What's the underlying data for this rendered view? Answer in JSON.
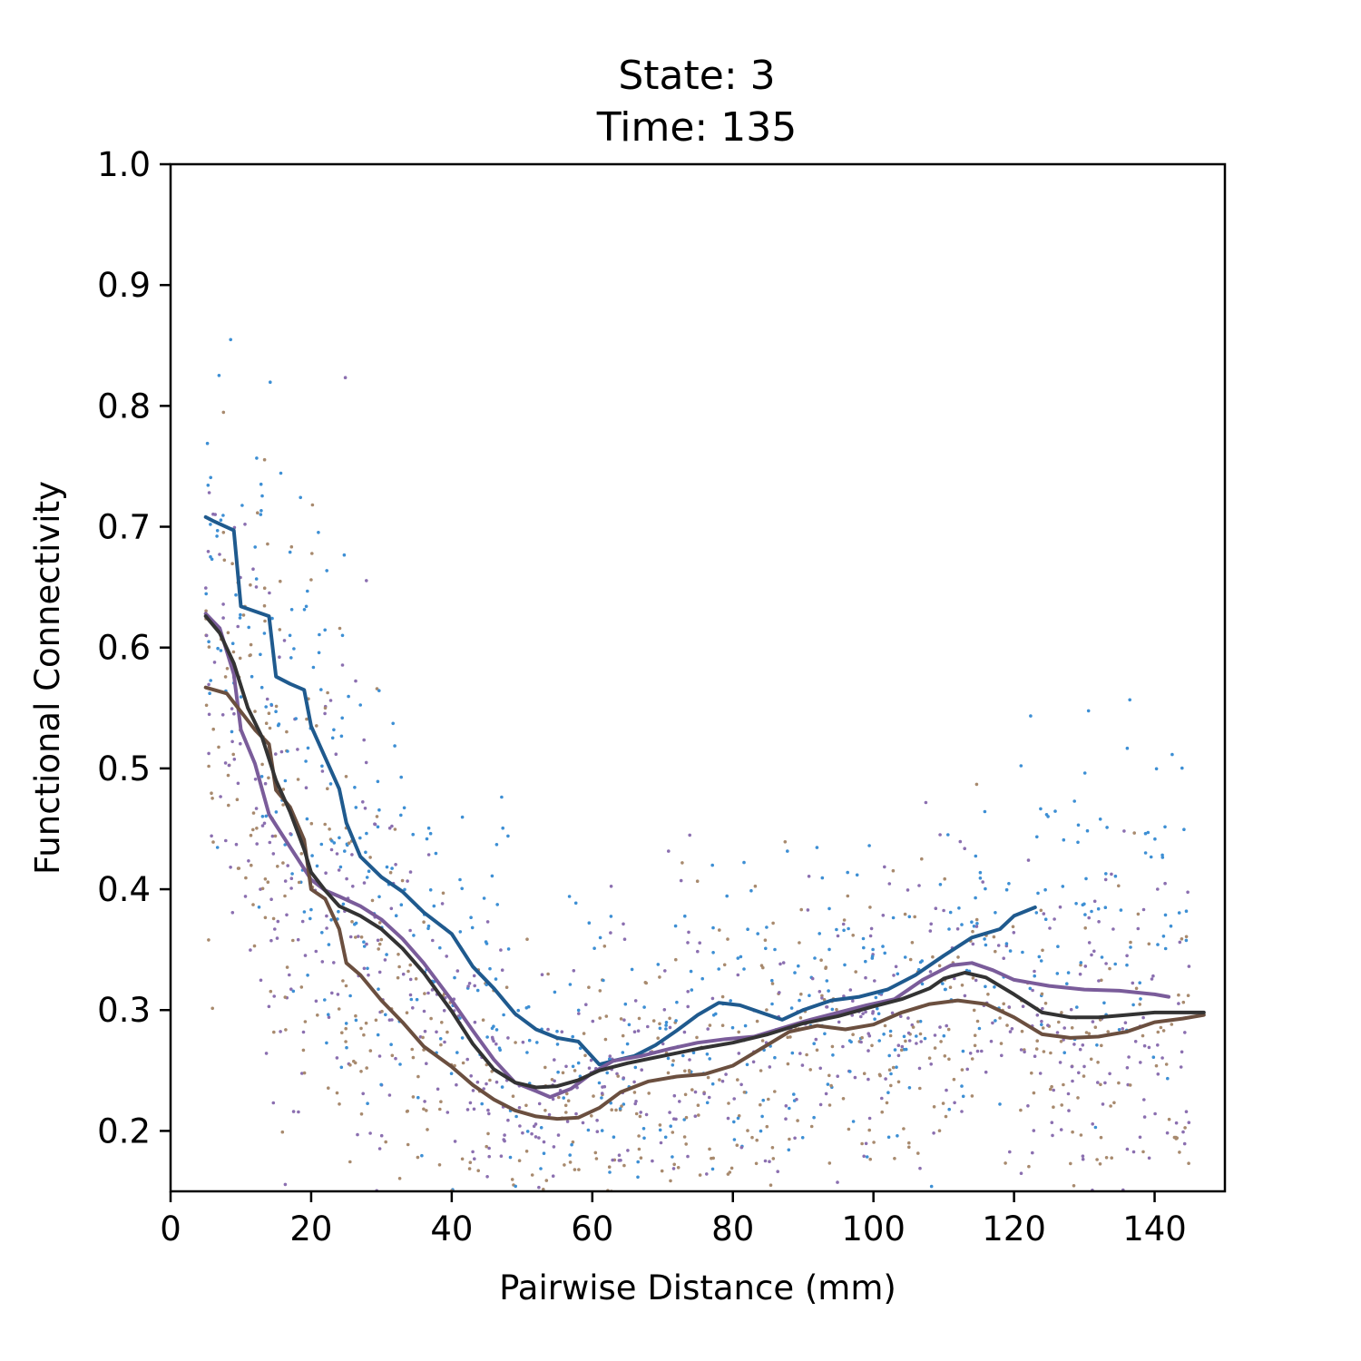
{
  "chart_data": {
    "type": "scatter",
    "title_line1": "State: 3",
    "title_line2": "Time: 135",
    "xlabel": "Pairwise Distance (mm)",
    "ylabel": "Functional Connectivity",
    "xlim": [
      0,
      150
    ],
    "ylim": [
      0.15,
      1.0
    ],
    "x_ticks": [
      0,
      20,
      40,
      60,
      80,
      100,
      120,
      140
    ],
    "y_ticks": [
      0.2,
      0.3,
      0.4,
      0.5,
      0.6,
      0.7,
      0.8,
      0.9,
      1.0
    ],
    "x_tick_labels": [
      "0",
      "20",
      "40",
      "60",
      "80",
      "100",
      "120",
      "140"
    ],
    "y_tick_labels": [
      "0.2",
      "0.3",
      "0.4",
      "0.5",
      "0.6",
      "0.7",
      "0.8",
      "0.9",
      "1.0"
    ],
    "grid": false,
    "legend": false,
    "colors": {
      "blue": "#1f5a8e",
      "purple": "#7a5c9a",
      "brown": "#6b4f3f",
      "dark": "#333333",
      "dot_blue": "#3d8fd4",
      "dot_purple": "#8b6fb0",
      "dot_brown": "#a88a6e"
    },
    "series": [
      {
        "color_key": "blue",
        "x": [
          5,
          6,
          9,
          10,
          14,
          15,
          17,
          19,
          20,
          22,
          24,
          25,
          27,
          30,
          33,
          36,
          40,
          43,
          46,
          49,
          52,
          55,
          58,
          61,
          63,
          66,
          69,
          72,
          75,
          78,
          81,
          84,
          87,
          90,
          94,
          98,
          102,
          106,
          110,
          114,
          118,
          120,
          123
        ],
        "y": [
          0.708,
          0.705,
          0.697,
          0.634,
          0.626,
          0.576,
          0.57,
          0.565,
          0.535,
          0.509,
          0.483,
          0.455,
          0.427,
          0.41,
          0.398,
          0.381,
          0.363,
          0.336,
          0.318,
          0.297,
          0.284,
          0.277,
          0.274,
          0.255,
          0.258,
          0.262,
          0.271,
          0.283,
          0.296,
          0.306,
          0.304,
          0.298,
          0.292,
          0.3,
          0.308,
          0.311,
          0.317,
          0.329,
          0.345,
          0.36,
          0.367,
          0.378,
          0.385
        ]
      },
      {
        "color_key": "purple",
        "x": [
          5,
          7,
          9,
          10,
          12,
          14,
          16,
          18,
          20,
          22,
          24,
          27,
          30,
          33,
          36,
          40,
          43,
          46,
          49,
          52,
          54,
          57,
          60,
          63,
          67,
          71,
          75,
          79,
          83,
          87,
          91,
          95,
          99,
          103,
          107,
          111,
          114,
          117,
          120,
          125,
          130,
          135,
          140,
          142
        ],
        "y": [
          0.628,
          0.616,
          0.578,
          0.532,
          0.504,
          0.462,
          0.444,
          0.426,
          0.408,
          0.399,
          0.394,
          0.386,
          0.375,
          0.359,
          0.339,
          0.308,
          0.283,
          0.259,
          0.24,
          0.233,
          0.228,
          0.235,
          0.248,
          0.258,
          0.262,
          0.268,
          0.273,
          0.276,
          0.278,
          0.285,
          0.292,
          0.298,
          0.304,
          0.309,
          0.325,
          0.337,
          0.339,
          0.333,
          0.325,
          0.32,
          0.317,
          0.316,
          0.313,
          0.311
        ]
      },
      {
        "color_key": "brown",
        "x": [
          5,
          8,
          10,
          12,
          14,
          15,
          17,
          19,
          20,
          22,
          24,
          25,
          27,
          30,
          33,
          36,
          40,
          43,
          46,
          49,
          52,
          55,
          58,
          61,
          64,
          68,
          72,
          76,
          80,
          84,
          88,
          92,
          96,
          100,
          104,
          108,
          112,
          116,
          120,
          124,
          128,
          132,
          136,
          140,
          144,
          147
        ],
        "y": [
          0.567,
          0.562,
          0.547,
          0.532,
          0.52,
          0.482,
          0.468,
          0.441,
          0.4,
          0.392,
          0.367,
          0.339,
          0.329,
          0.308,
          0.29,
          0.27,
          0.253,
          0.238,
          0.226,
          0.217,
          0.212,
          0.21,
          0.211,
          0.219,
          0.232,
          0.241,
          0.245,
          0.247,
          0.254,
          0.268,
          0.282,
          0.287,
          0.284,
          0.288,
          0.298,
          0.305,
          0.308,
          0.305,
          0.294,
          0.28,
          0.277,
          0.278,
          0.282,
          0.29,
          0.293,
          0.296
        ]
      },
      {
        "color_key": "dark",
        "x": [
          5,
          7,
          9,
          11,
          13,
          15,
          17,
          19,
          20,
          22,
          24,
          27,
          30,
          33,
          36,
          40,
          43,
          46,
          49,
          52,
          55,
          58,
          61,
          65,
          70,
          75,
          80,
          85,
          90,
          95,
          100,
          104,
          108,
          110,
          113,
          116,
          120,
          124,
          128,
          132,
          136,
          140,
          144,
          147
        ],
        "y": [
          0.626,
          0.612,
          0.587,
          0.55,
          0.526,
          0.49,
          0.464,
          0.433,
          0.414,
          0.399,
          0.386,
          0.378,
          0.367,
          0.351,
          0.331,
          0.299,
          0.272,
          0.251,
          0.24,
          0.236,
          0.237,
          0.242,
          0.25,
          0.256,
          0.262,
          0.268,
          0.273,
          0.28,
          0.289,
          0.295,
          0.303,
          0.309,
          0.318,
          0.326,
          0.331,
          0.327,
          0.313,
          0.298,
          0.294,
          0.294,
          0.296,
          0.298,
          0.298,
          0.298
        ]
      }
    ],
    "scatter_points": {
      "note_free": true,
      "seed": 135
    }
  }
}
